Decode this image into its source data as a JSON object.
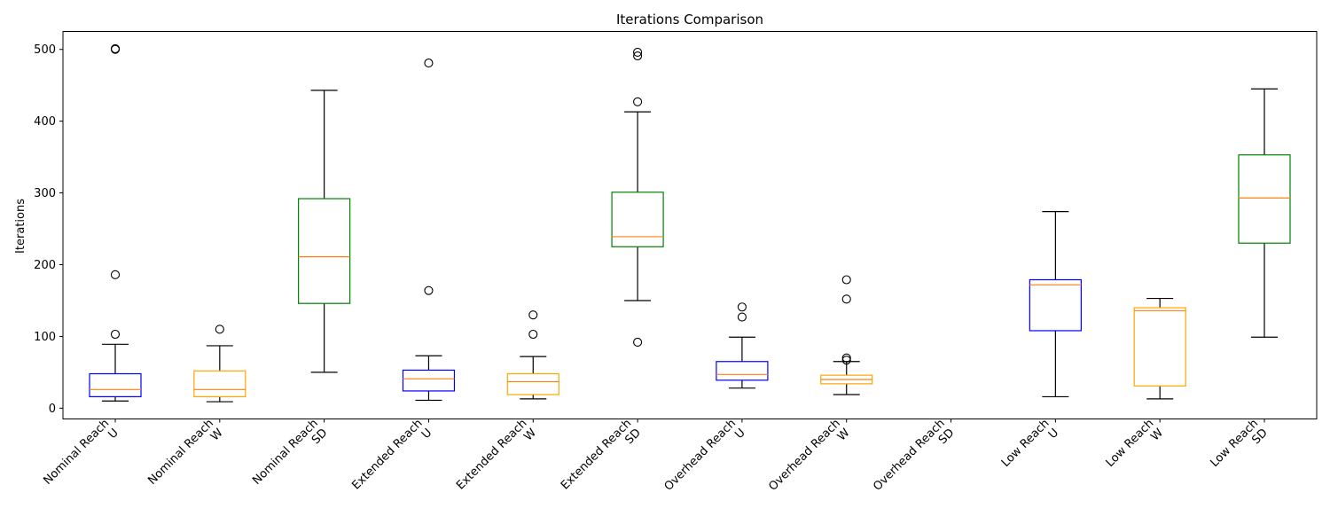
{
  "chart_data": {
    "type": "boxplot",
    "title": "Iterations Comparison",
    "xlabel": "",
    "ylabel": "Iterations",
    "ylim": [
      -15,
      525
    ],
    "yticks": [
      0,
      100,
      200,
      300,
      400,
      500
    ],
    "grid": false,
    "categories": [
      "Nominal Reach\nU",
      "Nominal Reach\nW",
      "Nominal Reach\nSD",
      "Extended Reach\nU",
      "Extended Reach\nW",
      "Extended Reach\nSD",
      "Overhead Reach\nU",
      "Overhead Reach\nW",
      "Overhead Reach\nSD",
      "Low Reach\nU",
      "Low Reach\nW",
      "Low Reach\nSD"
    ],
    "boxes": [
      {
        "color": "#0000ff",
        "whislo": 10,
        "q1": 16,
        "med": 26,
        "q3": 48,
        "whishi": 89,
        "fliers": [
          103,
          186,
          500,
          501
        ]
      },
      {
        "color": "#ffa500",
        "whislo": 9,
        "q1": 16,
        "med": 26,
        "q3": 52,
        "whishi": 87,
        "fliers": [
          110
        ]
      },
      {
        "color": "#008000",
        "whislo": 50,
        "q1": 146,
        "med": 211,
        "q3": 292,
        "whishi": 443,
        "fliers": []
      },
      {
        "color": "#0000ff",
        "whislo": 11,
        "q1": 24,
        "med": 41,
        "q3": 53,
        "whishi": 73,
        "fliers": [
          164,
          481
        ]
      },
      {
        "color": "#ffa500",
        "whislo": 13,
        "q1": 19,
        "med": 37,
        "q3": 48,
        "whishi": 72,
        "fliers": [
          103,
          130
        ]
      },
      {
        "color": "#008000",
        "whislo": 150,
        "q1": 225,
        "med": 239,
        "q3": 301,
        "whishi": 413,
        "fliers": [
          92,
          427,
          491,
          496
        ]
      },
      {
        "color": "#0000ff",
        "whislo": 28,
        "q1": 39,
        "med": 47,
        "q3": 65,
        "whishi": 99,
        "fliers": [
          127,
          141
        ]
      },
      {
        "color": "#ffa500",
        "whislo": 19,
        "q1": 34,
        "med": 40,
        "q3": 46,
        "whishi": 65,
        "fliers": [
          67,
          70,
          152,
          179
        ]
      },
      null,
      {
        "color": "#0000ff",
        "whislo": 16,
        "q1": 108,
        "med": 172,
        "q3": 179,
        "whishi": 274,
        "fliers": []
      },
      {
        "color": "#ffa500",
        "whislo": 13,
        "q1": 31,
        "med": 136,
        "q3": 140,
        "whishi": 153,
        "fliers": []
      },
      {
        "color": "#008000",
        "whislo": 99,
        "q1": 230,
        "med": 293,
        "q3": 353,
        "whishi": 445,
        "fliers": []
      }
    ],
    "median_color": "#ff7f0e"
  }
}
